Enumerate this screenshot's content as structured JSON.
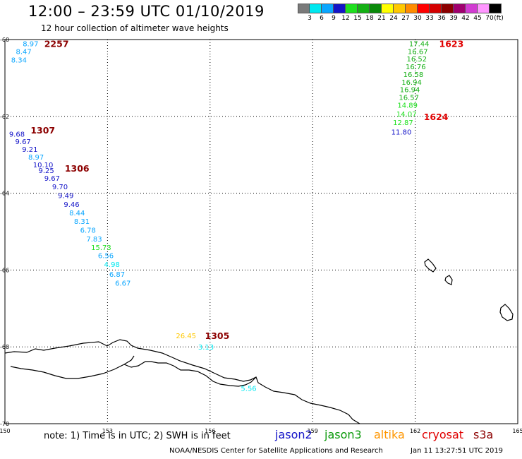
{
  "header": {
    "title": "12:00 – 23:59 UTC 01/10/2019",
    "subtitle": "12 hour collection of altimeter wave heights"
  },
  "scale": {
    "unit": "(ft)",
    "bins": [
      {
        "label": "3",
        "color": "#7a7a7a"
      },
      {
        "label": "6",
        "color": "#00e8f0"
      },
      {
        "label": "9",
        "color": "#0aa6ff"
      },
      {
        "label": "12",
        "color": "#1414c8"
      },
      {
        "label": "15",
        "color": "#1ee01e"
      },
      {
        "label": "18",
        "color": "#14b014"
      },
      {
        "label": "21",
        "color": "#0a8a0a"
      },
      {
        "label": "24",
        "color": "#ffff00"
      },
      {
        "label": "27",
        "color": "#ffc800"
      },
      {
        "label": "30",
        "color": "#ff8c00"
      },
      {
        "label": "33",
        "color": "#ff0000"
      },
      {
        "label": "36",
        "color": "#d40000"
      },
      {
        "label": "39",
        "color": "#8c0000"
      },
      {
        "label": "42",
        "color": "#a0006e"
      },
      {
        "label": "45",
        "color": "#d23cd2"
      },
      {
        "label": "70",
        "color": "#ff96ff"
      },
      {
        "label": "",
        "color": "#000000"
      }
    ]
  },
  "map": {
    "lat_ticks": [
      "-60",
      "-62",
      "-64",
      "-66",
      "-68",
      "-70"
    ],
    "lon_ticks": [
      "150",
      "153",
      "156",
      "159",
      "162",
      "165"
    ],
    "observations": [
      {
        "v": "8.97",
        "lon": 150.52,
        "lat": -60.1,
        "color": "#0aa6ff"
      },
      {
        "v": "8.47",
        "lon": 150.32,
        "lat": -60.3,
        "color": "#0aa6ff"
      },
      {
        "v": "8.34",
        "lon": 150.18,
        "lat": -60.52,
        "color": "#0aa6ff"
      },
      {
        "v": "9.68",
        "lon": 150.12,
        "lat": -62.45,
        "color": "#1414c8"
      },
      {
        "v": "9.67",
        "lon": 150.3,
        "lat": -62.65,
        "color": "#1414c8"
      },
      {
        "v": "9.21",
        "lon": 150.5,
        "lat": -62.85,
        "color": "#1414c8"
      },
      {
        "v": "8.97",
        "lon": 150.68,
        "lat": -63.05,
        "color": "#0aa6ff"
      },
      {
        "v": "10.10",
        "lon": 150.82,
        "lat": -63.25,
        "color": "#1414c8"
      },
      {
        "v": "9.25",
        "lon": 150.98,
        "lat": -63.4,
        "color": "#1414c8"
      },
      {
        "v": "9.67",
        "lon": 151.15,
        "lat": -63.6,
        "color": "#1414c8"
      },
      {
        "v": "9.70",
        "lon": 151.38,
        "lat": -63.82,
        "color": "#1414c8"
      },
      {
        "v": "9.49",
        "lon": 151.55,
        "lat": -64.05,
        "color": "#1414c8"
      },
      {
        "v": "9.46",
        "lon": 151.72,
        "lat": -64.28,
        "color": "#1414c8"
      },
      {
        "v": "8.44",
        "lon": 151.88,
        "lat": -64.5,
        "color": "#0aa6ff"
      },
      {
        "v": "8.31",
        "lon": 152.02,
        "lat": -64.72,
        "color": "#0aa6ff"
      },
      {
        "v": "6.78",
        "lon": 152.2,
        "lat": -64.95,
        "color": "#0aa6ff"
      },
      {
        "v": "7.83",
        "lon": 152.38,
        "lat": -65.18,
        "color": "#0aa6ff"
      },
      {
        "v": "15.73",
        "lon": 152.52,
        "lat": -65.4,
        "color": "#1ee01e"
      },
      {
        "v": "6.56",
        "lon": 152.72,
        "lat": -65.62,
        "color": "#0aa6ff"
      },
      {
        "v": "4.98",
        "lon": 152.9,
        "lat": -65.85,
        "color": "#00e8f0"
      },
      {
        "v": "6.87",
        "lon": 153.05,
        "lat": -66.1,
        "color": "#0aa6ff"
      },
      {
        "v": "6.67",
        "lon": 153.22,
        "lat": -66.33,
        "color": "#0aa6ff"
      },
      {
        "v": "26.45",
        "lon": 155.0,
        "lat": -67.7,
        "color": "#ffc800"
      },
      {
        "v": "3.13",
        "lon": 155.65,
        "lat": -68.0,
        "color": "#00e8f0"
      },
      {
        "v": "5.56",
        "lon": 156.9,
        "lat": -69.07,
        "color": "#00e8f0"
      },
      {
        "v": "17.44",
        "lon": 161.82,
        "lat": -60.1,
        "color": "#14b014"
      },
      {
        "v": "16.67",
        "lon": 161.78,
        "lat": -60.3,
        "color": "#14b014"
      },
      {
        "v": "16.52",
        "lon": 161.75,
        "lat": -60.5,
        "color": "#14b014"
      },
      {
        "v": "16.76",
        "lon": 161.72,
        "lat": -60.7,
        "color": "#14b014"
      },
      {
        "v": "16.58",
        "lon": 161.65,
        "lat": -60.9,
        "color": "#14b014"
      },
      {
        "v": "16.94",
        "lon": 161.6,
        "lat": -61.1,
        "color": "#14b014"
      },
      {
        "v": "16.94",
        "lon": 161.55,
        "lat": -61.3,
        "color": "#14b014"
      },
      {
        "v": "16.57",
        "lon": 161.52,
        "lat": -61.5,
        "color": "#14b014"
      },
      {
        "v": "14.89",
        "lon": 161.48,
        "lat": -61.7,
        "color": "#1ee01e"
      },
      {
        "v": "14.07",
        "lon": 161.45,
        "lat": -61.93,
        "color": "#1ee01e"
      },
      {
        "v": "12.87",
        "lon": 161.35,
        "lat": -62.15,
        "color": "#1ee01e"
      },
      {
        "v": "11.80",
        "lon": 161.3,
        "lat": -62.4,
        "color": "#1414c8"
      }
    ],
    "pass_times": [
      {
        "t": "2257",
        "lon": 151.15,
        "lat": -60.1
      },
      {
        "t": "1307",
        "lon": 150.75,
        "lat": -62.35
      },
      {
        "t": "1306",
        "lon": 151.75,
        "lat": -63.35
      },
      {
        "t": "1305",
        "lon": 155.85,
        "lat": -67.7
      },
      {
        "t": "1623",
        "lon": 162.7,
        "lat": -60.1
      },
      {
        "t": "1624",
        "lon": 162.25,
        "lat": -62.0
      }
    ]
  },
  "footer": {
    "note": "note:  1) Time is in UTC;  2) SWH is in feet",
    "satellites": [
      {
        "name": "jason2",
        "color": "#1414c8"
      },
      {
        "name": "jason3",
        "color": "#0a9a0a"
      },
      {
        "name": "altika",
        "color": "#ff9600"
      },
      {
        "name": "cryosat",
        "color": "#e00000"
      },
      {
        "name": "s3a",
        "color": "#8c0000"
      }
    ],
    "credit": "NOAA/NESDIS Center for Satellite Applications and Research",
    "timestamp": "Jan 11 13:27:51 UTC 2019"
  },
  "colors": {
    "pass_time": "#8c0000",
    "cryosat_pass_time": "#e00000",
    "grid": "#000000",
    "coast": "#000000"
  }
}
